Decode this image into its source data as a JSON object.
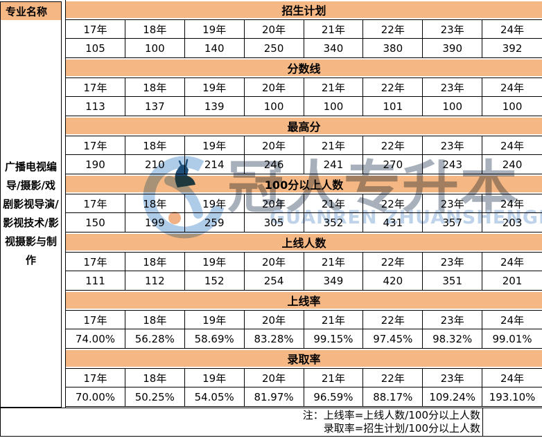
{
  "left_column": {
    "header": "专业名称",
    "major_name": "广播电视编导/摄影/戏剧影视导演/影视技术/影视摄影与制作"
  },
  "years": [
    "17年",
    "18年",
    "19年",
    "20年",
    "21年",
    "22年",
    "23年",
    "24年"
  ],
  "sections": [
    {
      "title": "招生计划",
      "values": [
        "105",
        "100",
        "140",
        "250",
        "340",
        "380",
        "390",
        "392"
      ]
    },
    {
      "title": "分数线",
      "values": [
        "113",
        "137",
        "139",
        "100",
        "100",
        "101",
        "100",
        "100"
      ]
    },
    {
      "title": "最高分",
      "values": [
        "190",
        "210",
        "214",
        "246",
        "241",
        "270",
        "243",
        "240"
      ]
    },
    {
      "title": "100分以上人数",
      "values": [
        "150",
        "199",
        "259",
        "305",
        "352",
        "431",
        "357",
        "203"
      ]
    },
    {
      "title": "上线人数",
      "values": [
        "111",
        "112",
        "152",
        "254",
        "349",
        "420",
        "351",
        "201"
      ]
    },
    {
      "title": "上线率",
      "values": [
        "74.00%",
        "56.28%",
        "58.69%",
        "83.28%",
        "99.15%",
        "97.45%",
        "98.32%",
        "99.01%"
      ]
    },
    {
      "title": "录取率",
      "values": [
        "70.00%",
        "50.25%",
        "54.05%",
        "81.97%",
        "96.59%",
        "88.17%",
        "109.24%",
        "193.10%"
      ]
    }
  ],
  "footer": {
    "note_line1": "注：上线率=上线人数/100分以上人数",
    "note_line2": "录取率=招生计划/100分以上人数"
  },
  "watermark": {
    "text": "冠人专升本",
    "subtext": "GUANREN ZHUANSHENGBEN"
  },
  "colors": {
    "band_orange": "#F5B783",
    "border_black": "#000000",
    "logo_light_blue": "#AECBE8",
    "logo_dark_blue": "#1F4E79",
    "logo_orange_dot": "#F2B184",
    "watermark_gray_blue": "#616F84"
  }
}
